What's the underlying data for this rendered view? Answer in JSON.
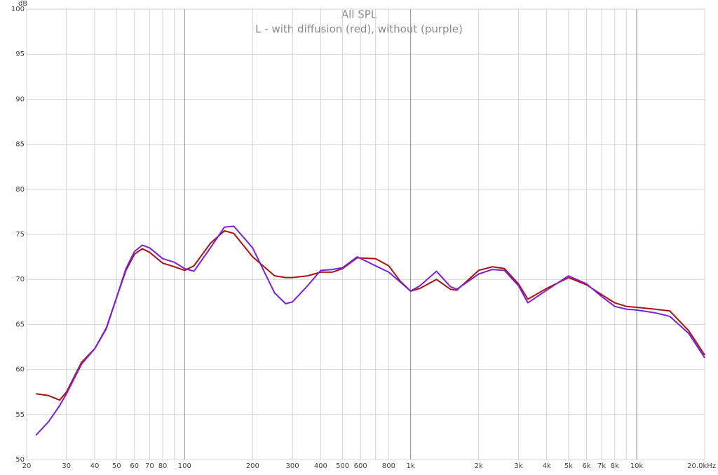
{
  "chart_data": {
    "type": "line",
    "title": "All SPL",
    "subtitle": "L - with diffusion (red), without (purple)",
    "y_label": "dB",
    "log_x": true,
    "grid": true,
    "xlim": [
      20,
      20000
    ],
    "ylim": [
      50,
      100
    ],
    "yticks": [
      50,
      55,
      60,
      65,
      70,
      75,
      80,
      85,
      90,
      95,
      100
    ],
    "xticks": [
      20,
      30,
      40,
      50,
      60,
      70,
      80,
      100,
      200,
      300,
      400,
      500,
      600,
      800,
      {
        "value": 1000,
        "label": "1k"
      },
      {
        "value": 2000,
        "label": "2k"
      },
      {
        "value": 3000,
        "label": "3k"
      },
      {
        "value": 4000,
        "label": "4k"
      },
      {
        "value": 5000,
        "label": "5k"
      },
      {
        "value": 6000,
        "label": "6k"
      },
      {
        "value": 7000,
        "label": "7k"
      },
      {
        "value": 8000,
        "label": "8k"
      },
      {
        "value": 10000,
        "label": "10k"
      },
      {
        "value": 20000,
        "label": "20.0kHz"
      }
    ],
    "x_minor_gridlines": [
      90,
      700,
      9000
    ],
    "x": [
      22,
      25,
      28,
      30,
      35,
      40,
      45,
      50,
      55,
      60,
      65,
      70,
      80,
      90,
      100,
      110,
      130,
      150,
      165,
      200,
      250,
      280,
      300,
      350,
      400,
      450,
      500,
      580,
      700,
      800,
      900,
      1000,
      1100,
      1300,
      1500,
      1600,
      2000,
      2300,
      2600,
      3000,
      3300,
      4000,
      5000,
      6000,
      7000,
      8000,
      9000,
      10000,
      12000,
      14000,
      17000,
      20000
    ],
    "series": [
      {
        "color": "#b01010",
        "values": [
          57.3,
          57.1,
          56.6,
          57.5,
          60.8,
          62.3,
          64.5,
          68.0,
          71.0,
          72.8,
          73.4,
          73.0,
          71.8,
          71.4,
          71.0,
          71.5,
          74.0,
          75.4,
          75.1,
          72.5,
          70.4,
          70.2,
          70.2,
          70.4,
          70.8,
          70.8,
          71.2,
          72.4,
          72.3,
          71.5,
          69.8,
          68.7,
          69.0,
          70.0,
          68.9,
          68.8,
          71.0,
          71.4,
          71.2,
          69.5,
          67.8,
          69.0,
          70.2,
          69.4,
          68.3,
          67.4,
          67.0,
          66.9,
          66.7,
          66.5,
          64.3,
          61.6
        ]
      },
      {
        "color": "#7a22d8",
        "values": [
          52.7,
          54.2,
          56.0,
          57.3,
          60.6,
          62.3,
          64.6,
          68.0,
          71.2,
          73.1,
          73.8,
          73.5,
          72.3,
          71.9,
          71.2,
          70.9,
          73.5,
          75.8,
          75.9,
          73.5,
          68.5,
          67.3,
          67.5,
          69.3,
          71.0,
          71.1,
          71.3,
          72.5,
          71.5,
          70.8,
          69.7,
          68.7,
          69.3,
          70.9,
          69.2,
          68.9,
          70.6,
          71.1,
          71.0,
          69.3,
          67.4,
          68.8,
          70.4,
          69.5,
          68.1,
          67.0,
          66.7,
          66.6,
          66.3,
          65.9,
          64.0,
          61.3
        ]
      }
    ]
  }
}
